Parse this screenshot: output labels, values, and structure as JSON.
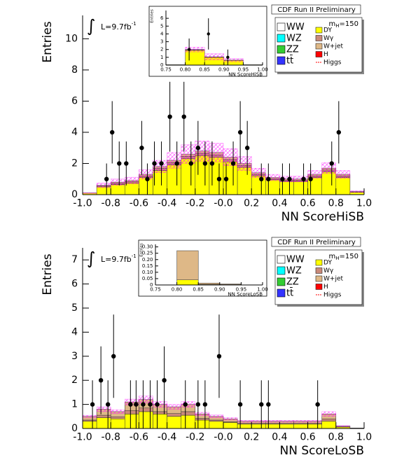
{
  "chart_data": [
    {
      "type": "histogram",
      "title": "CDF Run II Preliminary",
      "xlabel": "NN ScoreHiSB",
      "ylabel": "Entries",
      "luminosity": {
        "text": "L=9.7fb",
        "sup": "-1"
      },
      "mass": {
        "text": "m",
        "sub": "H",
        "value": "=150"
      },
      "xlim": [
        -1,
        1
      ],
      "ylim": [
        0,
        11.5
      ],
      "xticks": [
        {
          "value": -1,
          "label": "-1.0"
        },
        -0.8,
        -0.6,
        -0.4,
        -0.2,
        {
          "value": 0,
          "label": "-0.0"
        },
        0.2,
        0.4,
        0.6,
        0.8,
        {
          "value": 1,
          "label": "1.0"
        }
      ],
      "yticks": [
        0,
        2,
        4,
        6,
        8,
        10
      ],
      "bins": [
        -1,
        -0.9,
        -0.8,
        -0.7,
        -0.6,
        -0.5,
        -0.4,
        -0.3,
        -0.2,
        -0.1,
        0,
        0.1,
        0.2,
        0.3,
        0.4,
        0.5,
        0.6,
        0.7,
        0.8,
        0.9,
        1
      ],
      "series": [
        {
          "name": "WW",
          "color": "#ffffff"
        },
        {
          "name": "WZ",
          "color": "#00ffff"
        },
        {
          "name": "ZZ",
          "color": "#33cc33"
        },
        {
          "name": "tt̄",
          "color": "#3333ff"
        },
        {
          "name": "DY",
          "color": "#ffff00",
          "values": [
            0.1,
            0.5,
            0.65,
            0.75,
            1.1,
            1.55,
            1.9,
            2.3,
            2.5,
            2.4,
            2.1,
            1.75,
            1.2,
            0.95,
            0.85,
            0.85,
            1.1,
            1.45,
            1.1,
            0.15
          ]
        },
        {
          "name": "Wγ",
          "color": "#c98a7a",
          "values": [
            0,
            0.05,
            0.07,
            0.07,
            0.1,
            0.13,
            0.15,
            0.15,
            0.15,
            0.15,
            0.15,
            0.13,
            0.1,
            0.07,
            0.07,
            0.07,
            0.1,
            0.13,
            0.1,
            0.02
          ]
        },
        {
          "name": "W+jet",
          "color": "#deb887",
          "values": [
            0,
            0.05,
            0.08,
            0.08,
            0.1,
            0.12,
            0.15,
            0.15,
            0.15,
            0.15,
            0.15,
            0.12,
            0.1,
            0.08,
            0.08,
            0.08,
            0.1,
            0.12,
            0.1,
            0.03
          ]
        },
        {
          "name": "H",
          "color": "#ff0000"
        },
        {
          "name": "Higgs",
          "color": "#ff0000",
          "style": "line"
        }
      ],
      "uncertainty": {
        "color": "#ff00ff",
        "values": [
          0.03,
          0.15,
          0.2,
          0.22,
          0.3,
          0.4,
          0.5,
          0.6,
          0.65,
          0.6,
          0.55,
          0.45,
          0.3,
          0.2,
          0.18,
          0.18,
          0.25,
          0.35,
          0.25,
          0.05
        ]
      },
      "points": {
        "x": [
          -0.83,
          -0.79,
          -0.74,
          -0.69,
          -0.58,
          -0.54,
          -0.49,
          -0.44,
          -0.38,
          -0.33,
          -0.28,
          -0.23,
          -0.18,
          -0.13,
          -0.08,
          -0.03,
          0.02,
          0.07,
          0.12,
          0.17,
          0.27,
          0.32,
          0.42,
          0.47,
          0.57,
          0.62,
          0.77,
          0.82
        ],
        "y": [
          1,
          4,
          2,
          2,
          3,
          1,
          2,
          2,
          5,
          2,
          5,
          2,
          3,
          2,
          2,
          1,
          1,
          2,
          4,
          3,
          1,
          1,
          1,
          1,
          1,
          1,
          2,
          4
        ],
        "err": [
          1,
          2,
          1.41,
          1.41,
          1.73,
          1,
          1.41,
          1.41,
          2.24,
          1.41,
          2.24,
          1.41,
          1.73,
          1.41,
          1.41,
          1,
          1,
          1.41,
          2,
          1.73,
          1,
          1,
          1,
          1,
          1,
          1,
          1.41,
          2
        ]
      },
      "inset": {
        "type": "histogram",
        "xlabel": "NN ScoreHiSB",
        "ylabel": "Entries",
        "xlim": [
          0.75,
          1
        ],
        "ylim": [
          0,
          7
        ],
        "xticks": [
          0.75,
          {
            "value": 0.8,
            "label": "0.80"
          },
          0.85,
          {
            "value": 0.9,
            "label": "0.90"
          },
          0.95,
          {
            "value": 1,
            "label": "1.00"
          }
        ],
        "yticks": [
          0,
          1,
          2,
          3,
          4,
          5,
          6
        ],
        "bins": [
          0.75,
          0.8,
          0.85,
          0.9,
          0.95,
          1
        ],
        "series": [
          {
            "color": "#ffff00",
            "values": [
              0.05,
              1.9,
              1.0,
              0.6,
              0.05
            ]
          },
          {
            "color": "#c98a7a",
            "values": [
              0,
              0.05,
              0.03,
              0.02,
              0
            ]
          },
          {
            "color": "#deb887",
            "values": [
              0,
              0.05,
              0.03,
              0.02,
              0
            ]
          }
        ],
        "uncertainty": {
          "color": "#ff00ff",
          "values": [
            0,
            0.3,
            0.4,
            0.2,
            0
          ]
        },
        "points": {
          "x": [
            0.81,
            0.86,
            0.91
          ],
          "y": [
            2,
            4,
            1
          ],
          "err": [
            1.41,
            2,
            1
          ]
        }
      }
    },
    {
      "type": "histogram",
      "title": "CDF Run II Preliminary",
      "xlabel": "NN ScoreLoSB",
      "ylabel": "Entries",
      "luminosity": {
        "text": "L=9.7fb",
        "sup": "-1"
      },
      "mass": {
        "text": "m",
        "sub": "H",
        "value": "=150"
      },
      "xlim": [
        -1,
        1
      ],
      "ylim": [
        0,
        7.5
      ],
      "xticks": [
        {
          "value": -1,
          "label": "-1.0"
        },
        -0.8,
        -0.6,
        -0.4,
        -0.2,
        {
          "value": 0,
          "label": "-0.0"
        },
        0.2,
        0.4,
        0.6,
        0.8,
        {
          "value": 1,
          "label": "1.0"
        }
      ],
      "yticks": [
        0,
        1,
        2,
        3,
        4,
        5,
        6,
        7
      ],
      "bins": [
        -1,
        -0.9,
        -0.8,
        -0.7,
        -0.6,
        -0.5,
        -0.4,
        -0.3,
        -0.2,
        -0.1,
        0,
        0.1,
        0.2,
        0.3,
        0.4,
        0.5,
        0.6,
        0.7,
        0.8,
        0.9,
        1
      ],
      "series": [
        {
          "name": "WW",
          "color": "#ffffff"
        },
        {
          "name": "WZ",
          "color": "#00ffff"
        },
        {
          "name": "ZZ",
          "color": "#33cc33"
        },
        {
          "name": "tt̄",
          "color": "#3333ff"
        },
        {
          "name": "DY",
          "color": "#ffff00",
          "values": [
            0.3,
            0.45,
            0.4,
            0.6,
            0.7,
            0.6,
            0.5,
            0.55,
            0.35,
            0.3,
            0.25,
            0.18,
            0.18,
            0.18,
            0.18,
            0.18,
            0.18,
            0.3,
            0.06,
            0.01
          ]
        },
        {
          "name": "Wγ",
          "color": "#c98a7a",
          "values": [
            0.05,
            0.1,
            0.08,
            0.15,
            0.15,
            0.1,
            0.12,
            0.15,
            0.07,
            0.05,
            0.03,
            0.03,
            0.03,
            0.03,
            0.03,
            0.03,
            0.03,
            0.1,
            0.01,
            0
          ]
        },
        {
          "name": "W+jet",
          "color": "#deb887",
          "values": [
            0.15,
            0.25,
            0.22,
            0.35,
            0.35,
            0.3,
            0.28,
            0.3,
            0.18,
            0.15,
            0.12,
            0.09,
            0.09,
            0.09,
            0.09,
            0.09,
            0.09,
            0.2,
            0.03,
            0.01
          ]
        },
        {
          "name": "H",
          "color": "#ff0000"
        },
        {
          "name": "Higgs",
          "color": "#ff0000",
          "style": "line"
        }
      ],
      "uncertainty": {
        "color": "#ff00ff",
        "values": [
          0.05,
          0.1,
          0.08,
          0.12,
          0.15,
          0.12,
          0.1,
          0.12,
          0.07,
          0.06,
          0.05,
          0.04,
          0.04,
          0.04,
          0.04,
          0.04,
          0.04,
          0.1,
          0.02,
          0
        ]
      },
      "points": {
        "x": [
          -0.93,
          -0.87,
          -0.82,
          -0.78,
          -0.66,
          -0.62,
          -0.57,
          -0.52,
          -0.47,
          -0.42,
          -0.27,
          -0.18,
          -0.13,
          -0.03,
          0.12,
          0.27,
          0.32,
          0.67
        ],
        "y": [
          1,
          2,
          1,
          3,
          1,
          1,
          1,
          1,
          1,
          2,
          1,
          1,
          1,
          3,
          1,
          1,
          1,
          1
        ],
        "err": [
          1,
          1.41,
          1,
          1.73,
          1,
          1,
          1,
          1,
          1,
          1.41,
          1,
          1,
          1,
          1.73,
          1,
          1,
          1,
          1
        ]
      },
      "inset": {
        "type": "histogram",
        "xlabel": "NN ScoreLoSB",
        "ylabel": "Entries",
        "xlim": [
          0.75,
          1
        ],
        "ylim": [
          0,
          0.32
        ],
        "xticks": [
          0.75,
          {
            "value": 0.8,
            "label": "0.80"
          },
          0.85,
          {
            "value": 0.9,
            "label": "0.90"
          },
          0.95,
          {
            "value": 1,
            "label": "1.00"
          }
        ],
        "yticks": [
          0,
          0.05,
          {
            "value": 0.1,
            "label": "0.10"
          },
          0.15,
          {
            "value": 0.2,
            "label": "0.20"
          },
          0.25,
          {
            "value": 0.3,
            "label": "0.30"
          }
        ],
        "bins": [
          0.75,
          0.8,
          0.85,
          0.9,
          0.95,
          1
        ],
        "series": [
          {
            "color": "#ffff00",
            "values": [
              0,
              0.04,
              0.005,
              0.003,
              0
            ]
          },
          {
            "color": "#c98a7a",
            "values": [
              0,
              0,
              0,
              0,
              0
            ]
          },
          {
            "color": "#deb887",
            "values": [
              0,
              0.23,
              0.01,
              0.005,
              0
            ]
          }
        ],
        "uncertainty": {
          "color": "#ff00ff",
          "values": [
            0,
            0,
            0,
            0,
            0
          ]
        },
        "points": {
          "x": [],
          "y": [],
          "err": []
        }
      }
    }
  ]
}
